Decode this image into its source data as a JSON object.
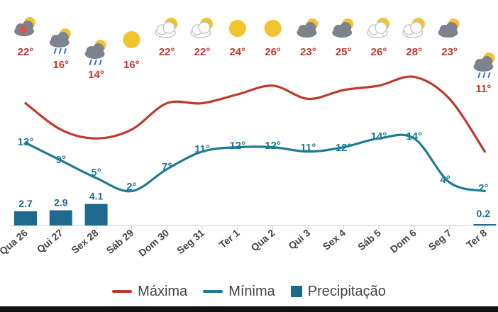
{
  "chart_data": {
    "type": "line",
    "categories": [
      "Qua 26",
      "Qui 27",
      "Sex 28",
      "Sáb 29",
      "Dom 30",
      "Seg 31",
      "Ter 1",
      "Qua 2",
      "Qui 3",
      "Sex 4",
      "Sáb 5",
      "Dom 6",
      "Seg 7",
      "Ter 8"
    ],
    "series": [
      {
        "name": "Máxima",
        "color": "#c0392b",
        "values": [
          22,
          16,
          14,
          16,
          22,
          22,
          24,
          26,
          23,
          25,
          26,
          28,
          23,
          11
        ],
        "labels": [
          "22°",
          "16°",
          "14°",
          "16°",
          "22°",
          "22°",
          "24°",
          "26°",
          "23°",
          "25°",
          "26°",
          "28°",
          "23°",
          "11°"
        ]
      },
      {
        "name": "Mínima",
        "color": "#1f7a95",
        "values": [
          13,
          9,
          5,
          2,
          7,
          11,
          12,
          12,
          11,
          12,
          14,
          14,
          4,
          2
        ],
        "labels": [
          "13°",
          "9°",
          "5°",
          "2°",
          "7°",
          "11°",
          "12°",
          "12°",
          "11°",
          "12°",
          "14°",
          "14°",
          "4°",
          "2°"
        ]
      },
      {
        "name": "Precipitação",
        "color": "#1f6a8c",
        "values": [
          2.7,
          2.9,
          4.1,
          null,
          null,
          null,
          null,
          null,
          null,
          null,
          null,
          null,
          null,
          0.2
        ],
        "labels": [
          "2.7",
          "2.9",
          "4.1",
          "",
          "",
          "",
          "",
          "",
          "",
          "",
          "",
          "",
          "",
          "0.2"
        ]
      }
    ],
    "icons": [
      "storm-cloud-icon",
      "rain-cloud-icon",
      "rain-cloud-icon",
      "sun-icon",
      "partly-cloudy-icon",
      "partly-cloudy-icon",
      "sun-icon",
      "sun-icon",
      "cloudy-icon",
      "cloudy-icon",
      "partly-cloudy-icon",
      "partly-cloudy-icon",
      "cloudy-icon",
      "rain-cloud-icon"
    ]
  },
  "legend": {
    "max_label": "Máxima",
    "min_label": "Mínima",
    "precip_label": "Precipitação"
  }
}
